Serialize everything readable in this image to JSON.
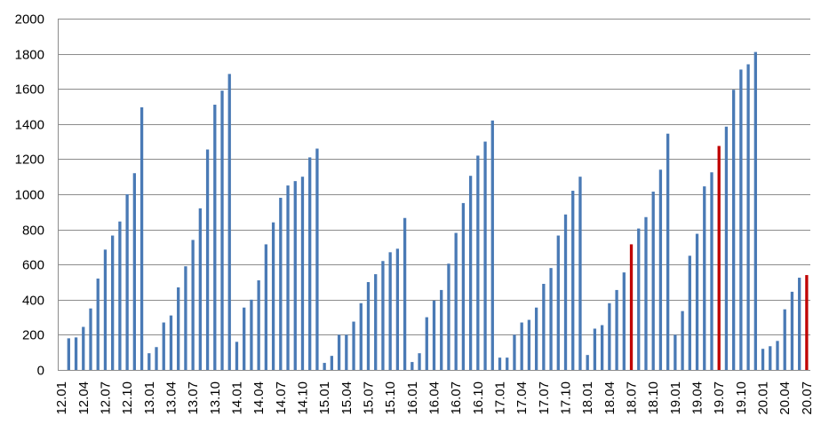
{
  "chart_data": {
    "type": "bar",
    "title": "",
    "xlabel": "",
    "ylabel": "",
    "ylim": [
      0,
      2000
    ],
    "yticks": [
      0,
      200,
      400,
      600,
      800,
      1000,
      1200,
      1400,
      1600,
      1800,
      2000
    ],
    "grid": true,
    "legend": "none",
    "xtick_labels": [
      "12.01",
      "12.04",
      "12.07",
      "12.10",
      "13.01",
      "13.04",
      "13.07",
      "13.10",
      "14.01",
      "14.04",
      "14.07",
      "14.10",
      "15.01",
      "15.04",
      "15.07",
      "15.10",
      "16.01",
      "16.04",
      "16.07",
      "16.10",
      "17.01",
      "17.04",
      "17.07",
      "17.10",
      "18.01",
      "18.04",
      "18.07",
      "18.10",
      "19.01",
      "19.04",
      "19.07",
      "19.10",
      "20.01",
      "20.04",
      "20.07"
    ],
    "categories": [
      "12.01",
      "12.02",
      "12.03",
      "12.04",
      "12.05",
      "12.06",
      "12.07",
      "12.08",
      "12.09",
      "12.10",
      "12.11",
      "12.12",
      "13.01",
      "13.02",
      "13.03",
      "13.04",
      "13.05",
      "13.06",
      "13.07",
      "13.08",
      "13.09",
      "13.10",
      "13.11",
      "13.12",
      "14.01",
      "14.02",
      "14.03",
      "14.04",
      "14.05",
      "14.06",
      "14.07",
      "14.08",
      "14.09",
      "14.10",
      "14.11",
      "14.12",
      "15.01",
      "15.02",
      "15.03",
      "15.04",
      "15.05",
      "15.06",
      "15.07",
      "15.08",
      "15.09",
      "15.10",
      "15.11",
      "15.12",
      "16.01",
      "16.02",
      "16.03",
      "16.04",
      "16.05",
      "16.06",
      "16.07",
      "16.08",
      "16.09",
      "16.10",
      "16.11",
      "16.12",
      "17.01",
      "17.02",
      "17.03",
      "17.04",
      "17.05",
      "17.06",
      "17.07",
      "17.08",
      "17.09",
      "17.10",
      "17.11",
      "17.12",
      "18.01",
      "18.02",
      "18.03",
      "18.04",
      "18.05",
      "18.06",
      "18.07",
      "18.08",
      "18.09",
      "18.10",
      "18.11",
      "18.12",
      "19.01",
      "19.02",
      "19.03",
      "19.04",
      "19.05",
      "19.06",
      "19.07",
      "19.08",
      "19.09",
      "19.10",
      "19.11",
      "19.12",
      "20.01",
      "20.02",
      "20.03",
      "20.04",
      "20.05",
      "20.06",
      "20.07"
    ],
    "values": [
      0,
      180,
      185,
      245,
      350,
      520,
      685,
      765,
      845,
      1000,
      1120,
      1495,
      95,
      130,
      270,
      310,
      470,
      590,
      740,
      920,
      1255,
      1510,
      1590,
      1685,
      160,
      355,
      400,
      510,
      715,
      840,
      980,
      1050,
      1075,
      1100,
      1210,
      1260,
      40,
      80,
      200,
      200,
      275,
      380,
      500,
      545,
      620,
      670,
      690,
      865,
      45,
      95,
      300,
      395,
      455,
      605,
      780,
      950,
      1105,
      1220,
      1300,
      1420,
      70,
      70,
      200,
      270,
      285,
      355,
      490,
      580,
      765,
      885,
      1020,
      1100,
      85,
      235,
      255,
      380,
      455,
      555,
      715,
      805,
      870,
      1015,
      1140,
      1345,
      200,
      335,
      650,
      775,
      1045,
      1125,
      1275,
      1385,
      1595,
      1710,
      1740,
      1810,
      120,
      135,
      165,
      345,
      445,
      525,
      540
    ],
    "colors": {
      "default": "#4a7ab5",
      "highlight": "#c00000"
    },
    "highlighted_categories": [
      "18.07",
      "19.07",
      "20.07"
    ]
  }
}
